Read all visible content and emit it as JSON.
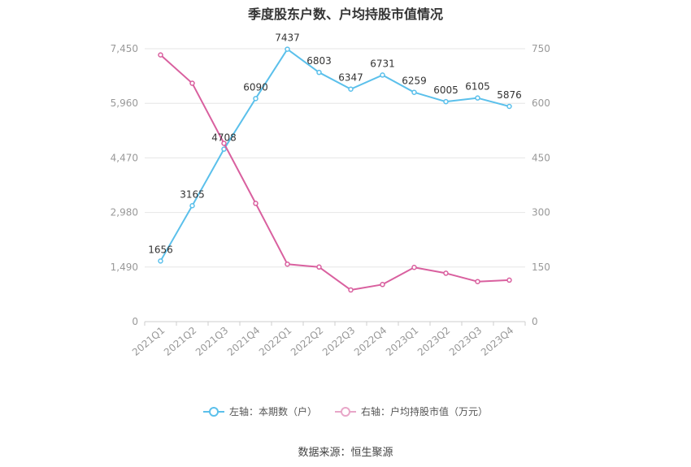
{
  "chart_data": {
    "type": "line",
    "title": "季度股东户数、户均持股市值情况",
    "categories": [
      "2021Q1",
      "2021Q2",
      "2021Q3",
      "2021Q4",
      "2022Q1",
      "2022Q2",
      "2022Q3",
      "2022Q4",
      "2023Q1",
      "2023Q2",
      "2023Q3",
      "2023Q4"
    ],
    "y_left": {
      "ticks": [
        "0",
        "1,490",
        "2,980",
        "4,470",
        "5,960",
        "7,450"
      ],
      "ylim": [
        0,
        7450
      ]
    },
    "y_right": {
      "ticks": [
        "0",
        "150",
        "300",
        "450",
        "600",
        "750"
      ],
      "ylim": [
        0,
        750
      ]
    },
    "series": [
      {
        "name": "左轴：本期数（户）",
        "axis": "left",
        "color": "#5bc0eb",
        "values": [
          1656,
          3165,
          4708,
          6090,
          7437,
          6803,
          6347,
          6731,
          6259,
          6005,
          6105,
          5876
        ],
        "labels": [
          "1656",
          "3165",
          "4708",
          "6090",
          "7437",
          "6803",
          "6347",
          "6731",
          "6259",
          "6005",
          "6105",
          "5876"
        ]
      },
      {
        "name": "右轴：户均持股市值（万元）",
        "axis": "right",
        "color": "#d9609f",
        "values": [
          733,
          655,
          490,
          325,
          158,
          150,
          87,
          102,
          149,
          133,
          110,
          114
        ]
      }
    ],
    "grid": true,
    "legend_position": "bottom"
  },
  "source": "数据来源：恒生聚源"
}
